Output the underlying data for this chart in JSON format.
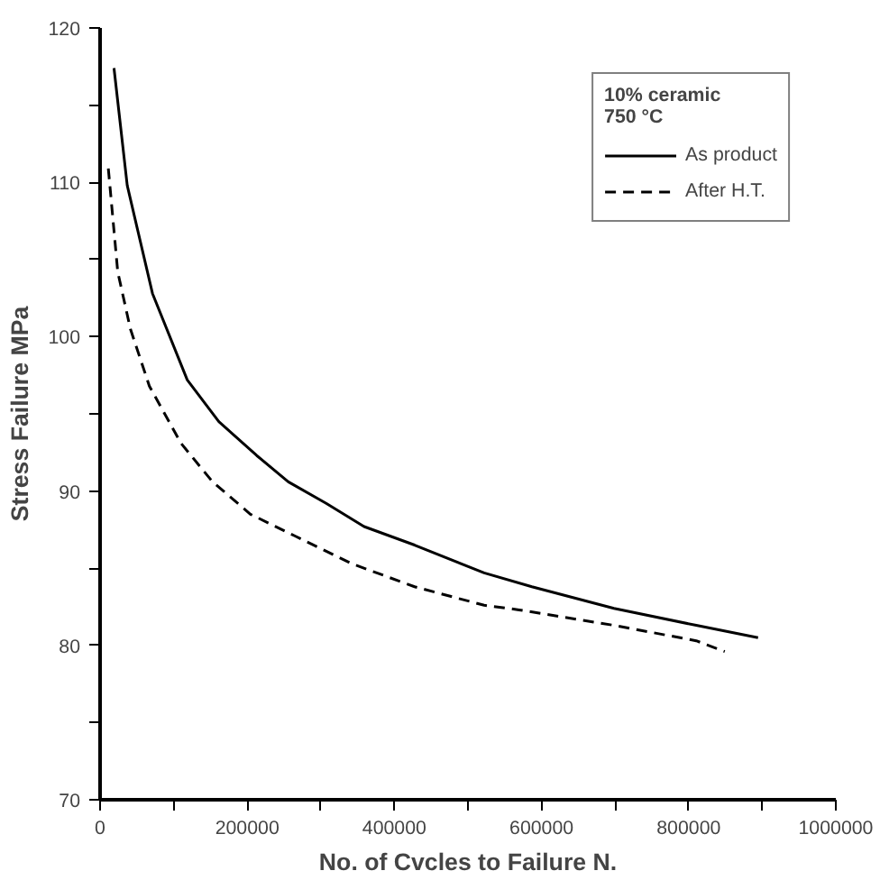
{
  "chart_data": {
    "type": "line",
    "xlabel": "No. of Cvcles to Failure N.",
    "ylabel": "Stress Failure MPa",
    "legend_title": "10% ceramic\n750 °C",
    "legend": "top right",
    "grid": false,
    "marker": "none",
    "xlim": [
      0,
      1000000
    ],
    "ylim": [
      70,
      120
    ],
    "xticks": [
      0,
      {
        "value": 100000,
        "label": null
      },
      200000,
      {
        "value": 300000,
        "label": null
      },
      400000,
      {
        "value": 500000,
        "label": null
      },
      600000,
      {
        "value": 700000,
        "label": null
      },
      800000,
      {
        "value": 900000,
        "label": null
      },
      1000000
    ],
    "yticks": [
      70,
      {
        "value": 75,
        "label": null
      },
      80,
      {
        "value": 85,
        "label": null
      },
      90,
      {
        "value": 95,
        "label": null
      },
      100,
      {
        "value": 105,
        "label": null
      },
      110,
      {
        "value": 115,
        "label": null
      },
      120
    ],
    "series": [
      {
        "name": "As product",
        "color": "#000000",
        "line_style": "solid",
        "x": [
          18900,
          36900,
          71200,
          118500,
          161400,
          212900,
          255800,
          307300,
          358800,
          427500,
          522000,
          586900,
          698500,
          810300,
          894300
        ],
        "values": [
          117.4,
          109.8,
          102.8,
          97.2,
          94.5,
          92.3,
          90.6,
          89.2,
          87.7,
          86.5,
          84.7,
          83.8,
          82.4,
          81.3,
          80.5
        ]
      },
      {
        "name": "After H.T.",
        "color": "#000000",
        "line_style": "dashed",
        "x": [
          11200,
          24000,
          41200,
          67000,
          109900,
          152800,
          204300,
          264400,
          341600,
          427500,
          522000,
          569600,
          698500,
          810300,
          849000
        ],
        "values": [
          110.9,
          104.2,
          100.5,
          96.8,
          93.1,
          90.6,
          88.5,
          87.1,
          85.3,
          83.8,
          82.6,
          82.3,
          81.3,
          80.3,
          79.6
        ]
      }
    ]
  }
}
